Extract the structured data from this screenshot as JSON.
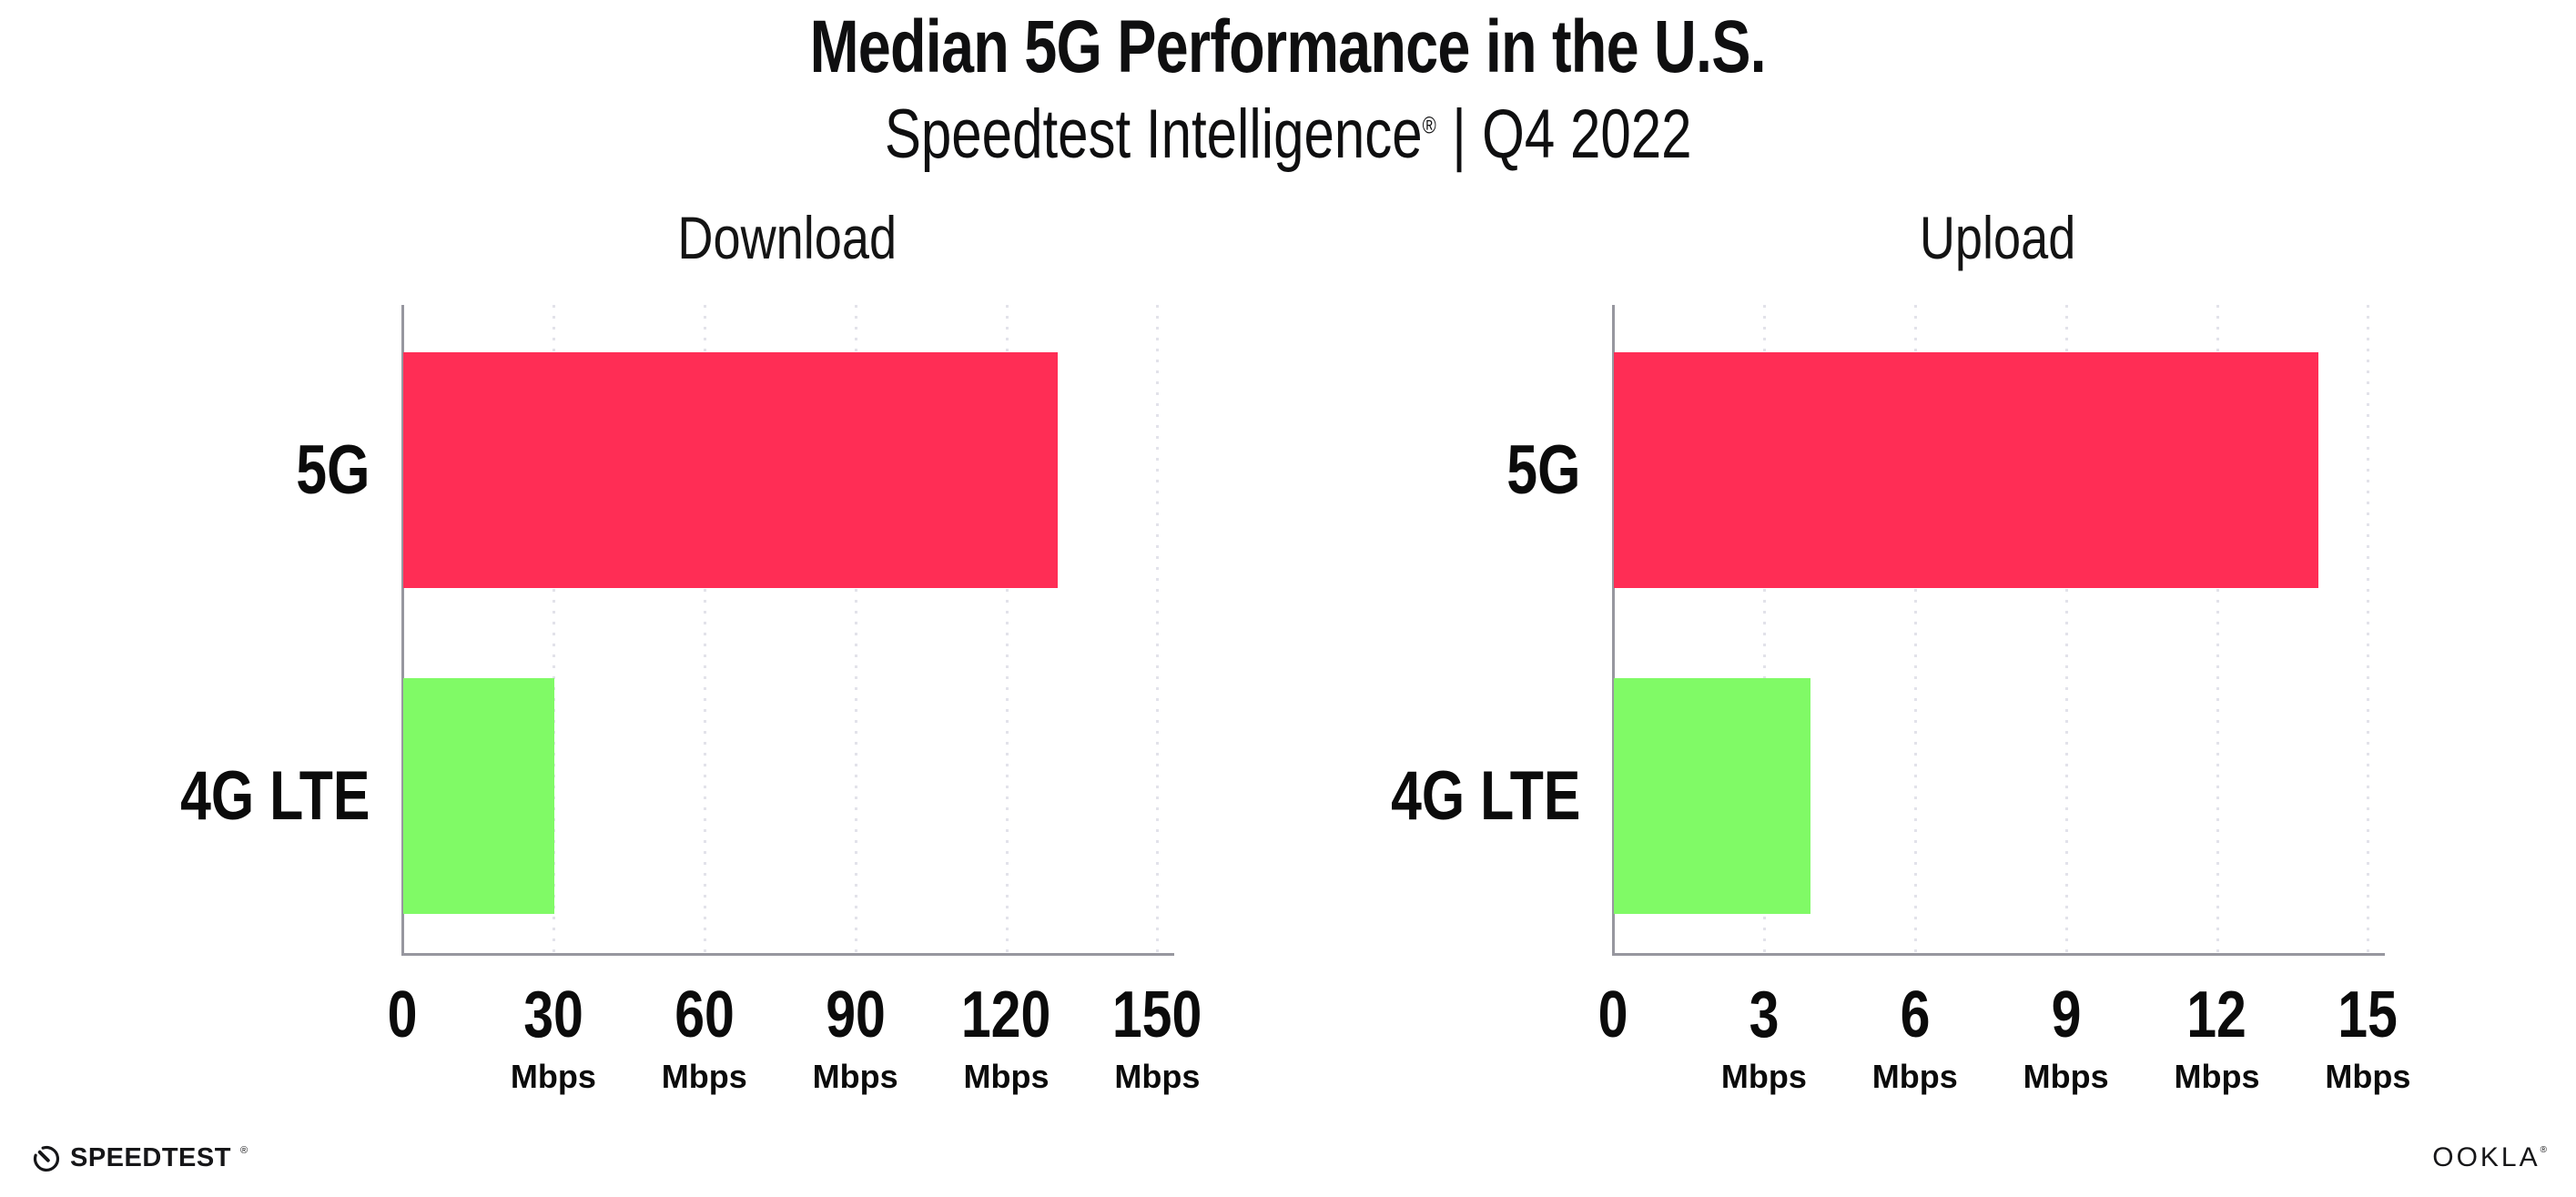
{
  "header": {
    "title": "Median 5G Performance in the U.S.",
    "subtitle_brand": "Speedtest Intelligence",
    "subtitle_reg_mark": "®",
    "subtitle_separator": "|",
    "subtitle_period": "Q4 2022"
  },
  "chart_data": [
    {
      "type": "bar",
      "orientation": "horizontal",
      "title": "Download",
      "categories": [
        "5G",
        "4G LTE"
      ],
      "values": [
        130,
        30
      ],
      "unit": "Mbps",
      "xticks": [
        0,
        30,
        60,
        90,
        120,
        150
      ],
      "xlim": [
        0,
        153
      ],
      "grid": "dotted-vertical",
      "legend": "none",
      "bar_colors": [
        "#ff2d55",
        "#80fa66"
      ]
    },
    {
      "type": "bar",
      "orientation": "horizontal",
      "title": "Upload",
      "categories": [
        "5G",
        "4G LTE"
      ],
      "values": [
        14,
        3.9
      ],
      "unit": "Mbps",
      "xticks": [
        0,
        3,
        6,
        9,
        12,
        15
      ],
      "xlim": [
        0,
        15.3
      ],
      "grid": "dotted-vertical",
      "legend": "none",
      "bar_colors": [
        "#ff2d55",
        "#80fa66"
      ]
    }
  ],
  "footer": {
    "speedtest_label": "SPEEDTEST",
    "speedtest_mark": "®",
    "ookla_label": "OOKLA",
    "ookla_mark": "®"
  },
  "colors": {
    "bar_5g": "#ff2d55",
    "bar_4g_lte": "#80fa66",
    "axis": "#97979f",
    "gridline": "#e2e2ea",
    "text": "#0f0f10",
    "background": "#ffffff"
  }
}
